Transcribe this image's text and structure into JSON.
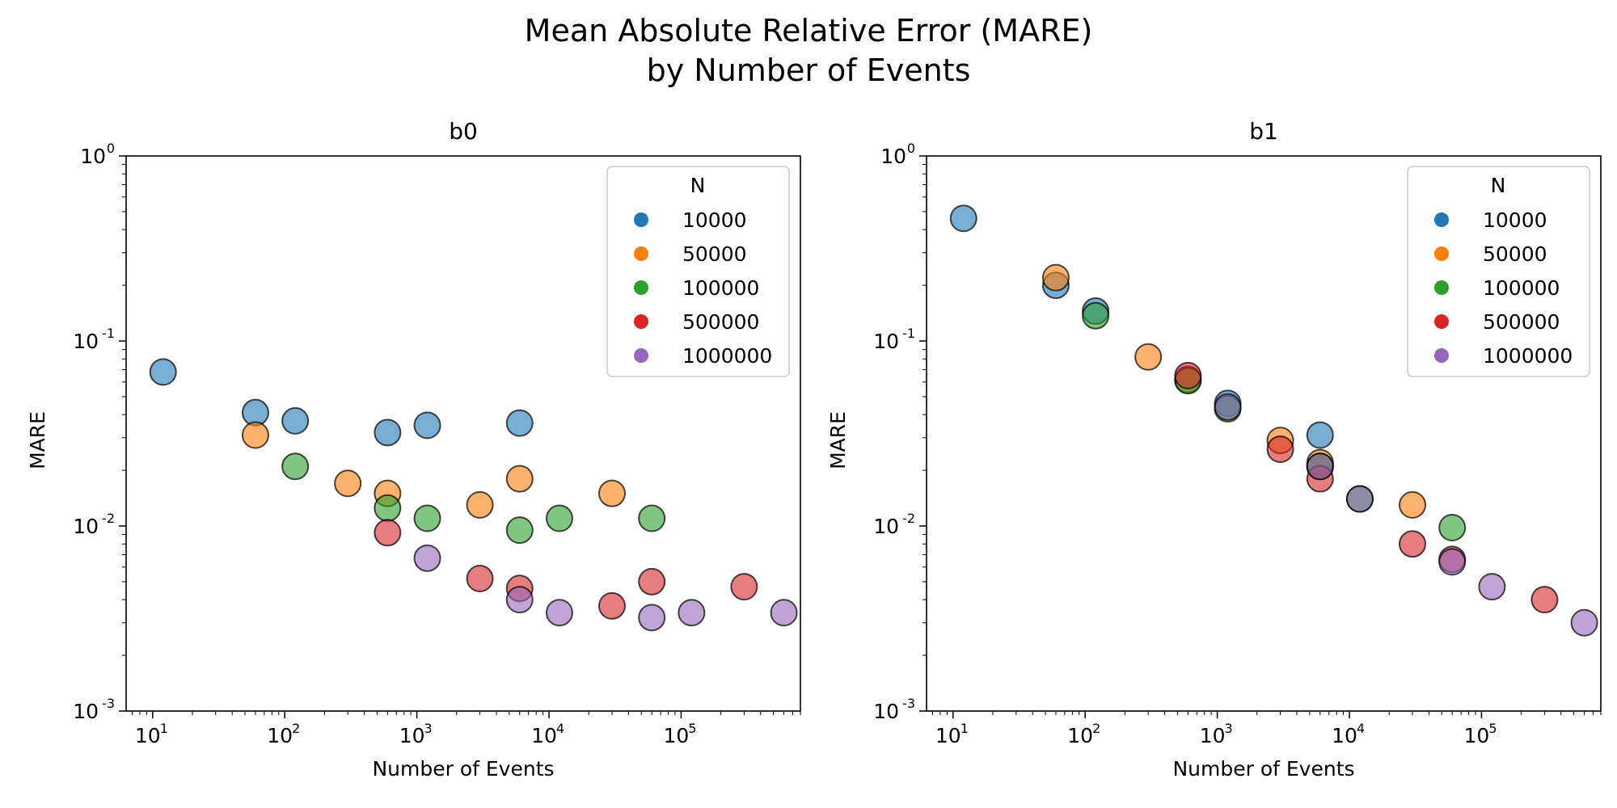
{
  "figure": {
    "suptitle_line1": "Mean Absolute Relative Error (MARE)",
    "suptitle_line2": "by Number of Events"
  },
  "colors": {
    "10000": "#1f77b4",
    "50000": "#ff7f0e",
    "100000": "#2ca02c",
    "500000": "#d62728",
    "1000000": "#9467bd"
  },
  "chart_data": [
    {
      "type": "scatter",
      "title": "b0",
      "xlabel": "Number of Events",
      "ylabel": "MARE",
      "xscale": "log",
      "yscale": "log",
      "xlim": [
        6.3,
        800000
      ],
      "ylim": [
        0.001,
        1
      ],
      "xticks": [
        "10^1",
        "10^2",
        "10^3",
        "10^4",
        "10^5"
      ],
      "yticks": [
        "10^-3",
        "10^-2",
        "10^-1",
        "10^0"
      ],
      "grid": false,
      "legend": {
        "title": "N",
        "placement": "top-right",
        "entries": [
          "10000",
          "50000",
          "100000",
          "500000",
          "1000000"
        ]
      },
      "series": [
        {
          "name": "10000",
          "points": [
            [
              12,
              0.068
            ],
            [
              60,
              0.041
            ],
            [
              120,
              0.037
            ],
            [
              600,
              0.032
            ],
            [
              1200,
              0.035
            ],
            [
              6000,
              0.036
            ]
          ]
        },
        {
          "name": "50000",
          "points": [
            [
              60,
              0.031
            ],
            [
              300,
              0.017
            ],
            [
              600,
              0.015
            ],
            [
              3000,
              0.013
            ],
            [
              6000,
              0.018
            ],
            [
              30000,
              0.015
            ]
          ]
        },
        {
          "name": "100000",
          "points": [
            [
              120,
              0.021
            ],
            [
              600,
              0.0125
            ],
            [
              1200,
              0.011
            ],
            [
              6000,
              0.0095
            ],
            [
              12000,
              0.011
            ],
            [
              60000,
              0.011
            ]
          ]
        },
        {
          "name": "500000",
          "points": [
            [
              600,
              0.0092
            ],
            [
              3000,
              0.0052
            ],
            [
              6000,
              0.0046
            ],
            [
              30000,
              0.0037
            ],
            [
              60000,
              0.005
            ],
            [
              300000,
              0.0047
            ]
          ]
        },
        {
          "name": "1000000",
          "points": [
            [
              1200,
              0.0067
            ],
            [
              6000,
              0.004
            ],
            [
              12000,
              0.0034
            ],
            [
              60000,
              0.0032
            ],
            [
              120000,
              0.0034
            ],
            [
              600000,
              0.0034
            ]
          ]
        }
      ]
    },
    {
      "type": "scatter",
      "title": "b1",
      "xlabel": "Number of Events",
      "ylabel": "MARE",
      "xscale": "log",
      "yscale": "log",
      "xlim": [
        6.3,
        800000
      ],
      "ylim": [
        0.001,
        1
      ],
      "xticks": [
        "10^1",
        "10^2",
        "10^3",
        "10^4",
        "10^5"
      ],
      "yticks": [
        "10^-3",
        "10^-2",
        "10^-1",
        "10^0"
      ],
      "grid": false,
      "legend": {
        "title": "N",
        "placement": "top-right",
        "entries": [
          "10000",
          "50000",
          "100000",
          "500000",
          "1000000"
        ]
      },
      "series": [
        {
          "name": "10000",
          "points": [
            [
              12,
              0.46
            ],
            [
              60,
              0.2
            ],
            [
              120,
              0.145
            ],
            [
              1200,
              0.046
            ],
            [
              6000,
              0.031
            ],
            [
              6000,
              0.021
            ]
          ]
        },
        {
          "name": "50000",
          "points": [
            [
              60,
              0.22
            ],
            [
              300,
              0.082
            ],
            [
              3000,
              0.029
            ],
            [
              6000,
              0.022
            ],
            [
              30000,
              0.013
            ],
            [
              600,
              0.062
            ]
          ]
        },
        {
          "name": "100000",
          "points": [
            [
              120,
              0.137
            ],
            [
              600,
              0.061
            ],
            [
              1200,
              0.043
            ],
            [
              12000,
              0.014
            ],
            [
              60000,
              0.0098
            ],
            [
              6000,
              0.021
            ]
          ]
        },
        {
          "name": "500000",
          "points": [
            [
              600,
              0.065
            ],
            [
              3000,
              0.026
            ],
            [
              6000,
              0.018
            ],
            [
              30000,
              0.008
            ],
            [
              60000,
              0.0066
            ],
            [
              300000,
              0.004
            ]
          ]
        },
        {
          "name": "1000000",
          "points": [
            [
              1200,
              0.044
            ],
            [
              6000,
              0.021
            ],
            [
              12000,
              0.014
            ],
            [
              60000,
              0.0064
            ],
            [
              120000,
              0.0047
            ],
            [
              600000,
              0.003
            ]
          ]
        }
      ]
    }
  ]
}
